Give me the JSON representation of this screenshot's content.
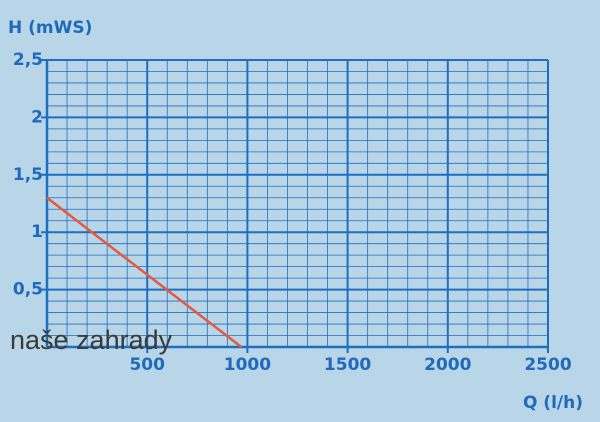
{
  "chart_data": {
    "type": "line",
    "x_label": "Q (l/h)",
    "y_label": "H (mWS)",
    "watermark": "naše zahrady",
    "x": [
      0,
      970
    ],
    "series": [
      {
        "color": "#e35a3f",
        "values": [
          1.3,
          0
        ]
      }
    ],
    "xlim": [
      0,
      2500
    ],
    "xticks": [
      500,
      1000,
      1500,
      2000,
      2500
    ],
    "ylim": [
      0,
      2.5
    ],
    "yticks": [
      {
        "value": 0.5,
        "label": "0,5"
      },
      1,
      {
        "value": 1.5,
        "label": "1,5"
      },
      2,
      {
        "value": 2.5,
        "label": "2,5"
      }
    ],
    "grid": true,
    "minor_divisions": 5,
    "grid_color": "#1f6fbf"
  }
}
